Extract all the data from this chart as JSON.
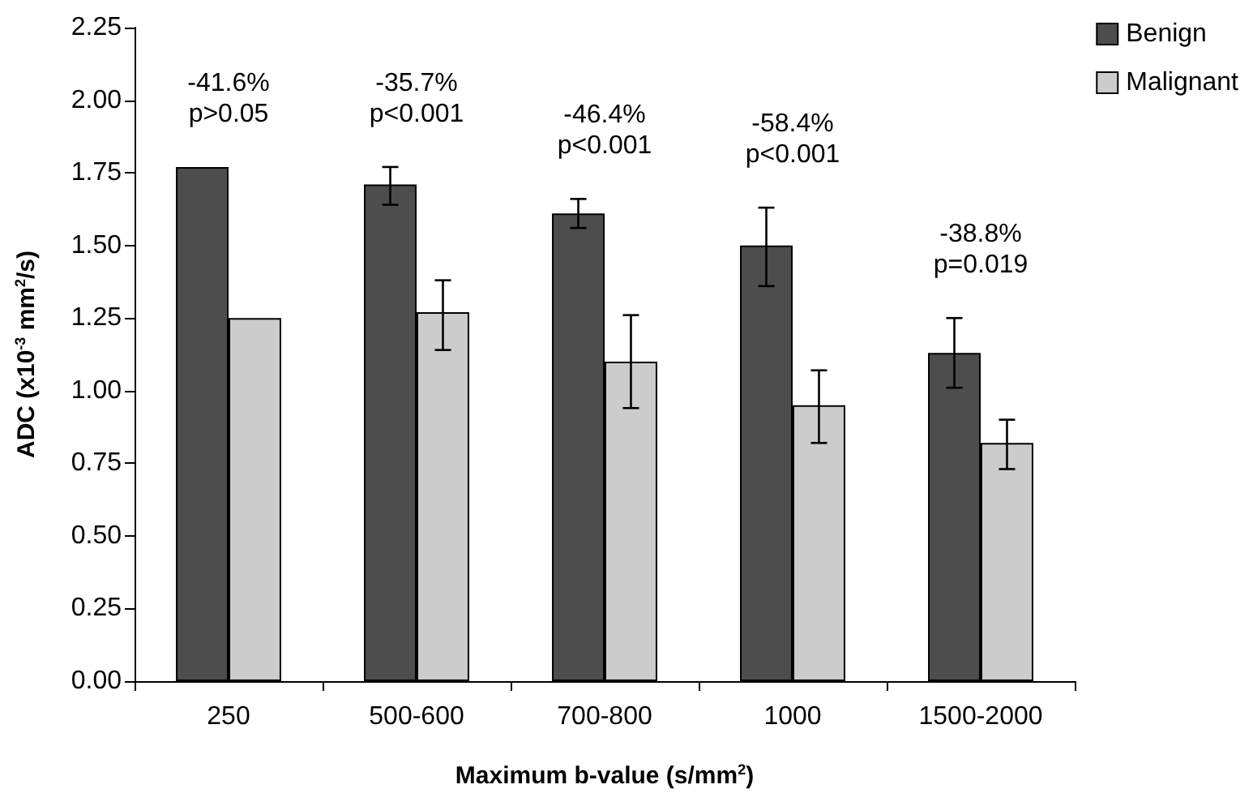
{
  "chart_data": {
    "type": "bar",
    "xlabel": "Maximum b-value (s/mm$^{2}$)",
    "ylabel": "ADC (x10$^{-3}$ mm$^{2}$/s)",
    "categories": [
      "250",
      "500-600",
      "700-800",
      "1000",
      "1500-2000"
    ],
    "series": [
      {
        "name": "Benign",
        "color": "#4d4d4d",
        "values": [
          1.77,
          1.71,
          1.61,
          1.5,
          1.13
        ],
        "errors": [
          null,
          [
            1.64,
            1.77
          ],
          [
            1.56,
            1.66
          ],
          [
            1.36,
            1.63
          ],
          [
            1.01,
            1.25
          ]
        ]
      },
      {
        "name": "Malignant",
        "color": "#cccccc",
        "values": [
          1.25,
          1.27,
          1.1,
          0.95,
          0.82
        ],
        "errors": [
          null,
          [
            1.14,
            1.38
          ],
          [
            0.94,
            1.26
          ],
          [
            0.82,
            1.07
          ],
          [
            0.73,
            0.9
          ]
        ]
      }
    ],
    "ylim": [
      0,
      2.25
    ],
    "yticks": [
      {
        "value": 0,
        "label": "0.00"
      },
      {
        "value": 0.25,
        "label": "0.25"
      },
      {
        "value": 0.5,
        "label": "0.50"
      },
      {
        "value": 0.75,
        "label": "0.75"
      },
      {
        "value": 1,
        "label": "1.00"
      },
      {
        "value": 1.25,
        "label": "1.25"
      },
      {
        "value": 1.5,
        "label": "1.50"
      },
      {
        "value": 1.75,
        "label": "1.75"
      },
      {
        "value": 2,
        "label": "2.00"
      },
      {
        "value": 2.25,
        "label": "2.25"
      }
    ],
    "grid": false,
    "legend": "top right",
    "annotations": [
      "-41.6%\np>0.05",
      "-35.7%\np<0.001",
      "-46.4%\np<0.001",
      "-58.4%\np<0.001",
      "-38.8%\np=0.019"
    ]
  }
}
